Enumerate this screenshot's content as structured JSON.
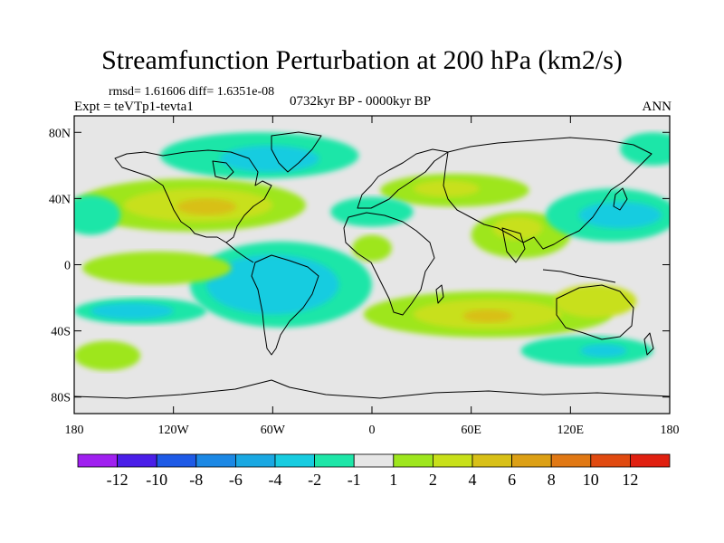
{
  "title": "Streamfunction Perturbation at 200 hPa (km2/s)",
  "stats": "rmsd= 1.61606 diff= 1.6351e-08",
  "experiment": "Expt = teVTp1-tevta1",
  "period": "0732kyr BP - 0000kyr BP",
  "season": "ANN",
  "map": {
    "lon_range": [
      -180,
      180
    ],
    "lat_range": [
      -90,
      90
    ],
    "lat_ticks": [
      {
        "value": 80,
        "label": "80N"
      },
      {
        "value": 40,
        "label": "40N"
      },
      {
        "value": 0,
        "label": "0"
      },
      {
        "value": -40,
        "label": "40S"
      },
      {
        "value": -80,
        "label": "80S"
      }
    ],
    "lon_ticks": [
      {
        "value": -180,
        "label": "180"
      },
      {
        "value": -120,
        "label": "120W"
      },
      {
        "value": -60,
        "label": "60W"
      },
      {
        "value": 0,
        "label": "0"
      },
      {
        "value": 60,
        "label": "60E"
      },
      {
        "value": 120,
        "label": "120E"
      },
      {
        "value": 180,
        "label": "180"
      }
    ],
    "background_color": "#e6e6e6"
  },
  "colorbar": {
    "labels": [
      "-12",
      "-10",
      "-8",
      "-6",
      "-4",
      "-2",
      "-1",
      "1",
      "2",
      "4",
      "6",
      "8",
      "10",
      "12"
    ],
    "colors": [
      "#a020f0",
      "#4a1ee8",
      "#1e5ae6",
      "#1c88e4",
      "#1aa8e2",
      "#18cce0",
      "#1ee6a8",
      "#e6e6e6",
      "#9ee61e",
      "#c8e01a",
      "#d8c018",
      "#dca016",
      "#e07814",
      "#e04a10",
      "#e02010"
    ]
  },
  "contour_regions": [
    {
      "name": "arctic-canada-negative",
      "color": "#1ee6a8",
      "lon": -68,
      "lat": 66,
      "rx": 60,
      "ry": 14
    },
    {
      "name": "arctic-canada-negative-core",
      "color": "#18cce0",
      "lon": -62,
      "lat": 64,
      "rx": 30,
      "ry": 8
    },
    {
      "name": "north-america-positive",
      "color": "#9ee61e",
      "lon": -110,
      "lat": 36,
      "rx": 70,
      "ry": 16
    },
    {
      "name": "north-america-positive-mid",
      "color": "#c8e01a",
      "lon": -105,
      "lat": 36,
      "rx": 45,
      "ry": 10
    },
    {
      "name": "north-america-positive-core",
      "color": "#d8c018",
      "lon": -100,
      "lat": 35,
      "rx": 18,
      "ry": 5
    },
    {
      "name": "north-pacific-negative",
      "color": "#1ee6a8",
      "lon": -170,
      "lat": 30,
      "rx": 18,
      "ry": 12
    },
    {
      "name": "tropical-south-america-negative",
      "color": "#1ee6a8",
      "lon": -55,
      "lat": -12,
      "rx": 55,
      "ry": 26
    },
    {
      "name": "tropical-south-america-negative-core",
      "color": "#18cce0",
      "lon": -60,
      "lat": -12,
      "rx": 40,
      "ry": 18
    },
    {
      "name": "east-pacific-positive",
      "color": "#9ee61e",
      "lon": -130,
      "lat": -2,
      "rx": 45,
      "ry": 10
    },
    {
      "name": "south-pacific-negative",
      "color": "#1ee6a8",
      "lon": -140,
      "lat": -28,
      "rx": 40,
      "ry": 8
    },
    {
      "name": "south-pacific-negative-core",
      "color": "#18cce0",
      "lon": -145,
      "lat": -28,
      "rx": 25,
      "ry": 5
    },
    {
      "name": "southeast-pacific-positive",
      "color": "#9ee61e",
      "lon": -160,
      "lat": -55,
      "rx": 20,
      "ry": 9
    },
    {
      "name": "eurasia-positive",
      "color": "#9ee61e",
      "lon": 50,
      "lat": 45,
      "rx": 45,
      "ry": 10
    },
    {
      "name": "eurasia-positive-core",
      "color": "#c8e01a",
      "lon": 45,
      "lat": 46,
      "rx": 20,
      "ry": 5
    },
    {
      "name": "asia-positive",
      "color": "#9ee61e",
      "lon": 90,
      "lat": 18,
      "rx": 30,
      "ry": 14
    },
    {
      "name": "asia-positive-core",
      "color": "#c8e01a",
      "lon": 88,
      "lat": 22,
      "rx": 15,
      "ry": 7
    },
    {
      "name": "north-atlantic-negative",
      "color": "#1ee6a8",
      "lon": 0,
      "lat": 32,
      "rx": 25,
      "ry": 9
    },
    {
      "name": "west-pacific-negative",
      "color": "#1ee6a8",
      "lon": 145,
      "lat": 30,
      "rx": 40,
      "ry": 16
    },
    {
      "name": "west-pacific-negative-core",
      "color": "#18cce0",
      "lon": 150,
      "lat": 30,
      "rx": 25,
      "ry": 8
    },
    {
      "name": "arctic-east-negative",
      "color": "#1ee6a8",
      "lon": 170,
      "lat": 70,
      "rx": 20,
      "ry": 10
    },
    {
      "name": "southern-ocean-positive",
      "color": "#9ee61e",
      "lon": 70,
      "lat": -30,
      "rx": 75,
      "ry": 14
    },
    {
      "name": "southern-ocean-positive-mid",
      "color": "#c8e01a",
      "lon": 70,
      "lat": -30,
      "rx": 45,
      "ry": 9
    },
    {
      "name": "southern-ocean-positive-core",
      "color": "#d8c018",
      "lon": 70,
      "lat": -31,
      "rx": 15,
      "ry": 4
    },
    {
      "name": "australia-positive",
      "color": "#c8e01a",
      "lon": 135,
      "lat": -22,
      "rx": 25,
      "ry": 10
    },
    {
      "name": "south-indian-negative",
      "color": "#1ee6a8",
      "lon": 130,
      "lat": -52,
      "rx": 40,
      "ry": 9
    },
    {
      "name": "south-indian-negative-core",
      "color": "#18cce0",
      "lon": 140,
      "lat": -52,
      "rx": 14,
      "ry": 4
    },
    {
      "name": "west-africa-positive",
      "color": "#9ee61e",
      "lon": 0,
      "lat": 10,
      "rx": 12,
      "ry": 8
    }
  ]
}
